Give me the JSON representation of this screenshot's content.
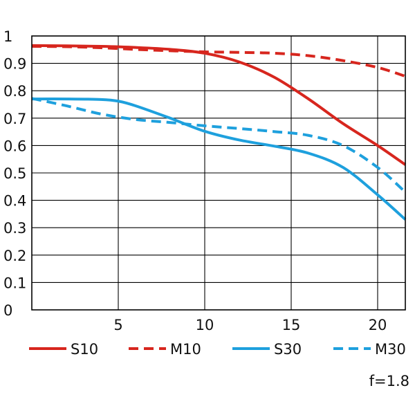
{
  "chart_data": {
    "type": "line",
    "title": "",
    "xlabel": "",
    "ylabel": "",
    "xlim": [
      0,
      21.6
    ],
    "ylim": [
      0,
      1
    ],
    "x_ticks": [
      "5",
      "10",
      "15",
      "20"
    ],
    "y_ticks": [
      "0",
      "0.1",
      "0.2",
      "0.3",
      "0.4",
      "0.5",
      "0.6",
      "0.7",
      "0.8",
      "0.9",
      "1"
    ],
    "grid": true,
    "legend_position": "bottom",
    "series": [
      {
        "name": "S10",
        "color": "#d7261e",
        "dash": false,
        "x": [
          0,
          2,
          4,
          6,
          8,
          10,
          12,
          14,
          16,
          18,
          20,
          21.6
        ],
        "y": [
          0.965,
          0.964,
          0.962,
          0.958,
          0.951,
          0.937,
          0.905,
          0.85,
          0.77,
          0.68,
          0.6,
          0.53
        ]
      },
      {
        "name": "M10",
        "color": "#d7261e",
        "dash": true,
        "x": [
          0,
          2,
          4,
          6,
          8,
          10,
          12,
          14,
          16,
          18,
          20,
          21.6
        ],
        "y": [
          0.962,
          0.961,
          0.957,
          0.951,
          0.946,
          0.942,
          0.94,
          0.937,
          0.928,
          0.91,
          0.885,
          0.853
        ]
      },
      {
        "name": "S30",
        "color": "#1ea0dd",
        "dash": false,
        "x": [
          0,
          2,
          4,
          5,
          6,
          8,
          10,
          12,
          14,
          16,
          18,
          20,
          21.6
        ],
        "y": [
          0.77,
          0.77,
          0.768,
          0.762,
          0.745,
          0.7,
          0.652,
          0.62,
          0.598,
          0.572,
          0.52,
          0.42,
          0.33
        ]
      },
      {
        "name": "M30",
        "color": "#1ea0dd",
        "dash": true,
        "x": [
          0,
          2,
          4,
          6,
          8,
          10,
          12,
          14,
          16,
          18,
          20,
          21.6
        ],
        "y": [
          0.772,
          0.745,
          0.715,
          0.695,
          0.684,
          0.672,
          0.662,
          0.651,
          0.637,
          0.6,
          0.52,
          0.43
        ]
      }
    ]
  },
  "annotation": "f=1.8"
}
